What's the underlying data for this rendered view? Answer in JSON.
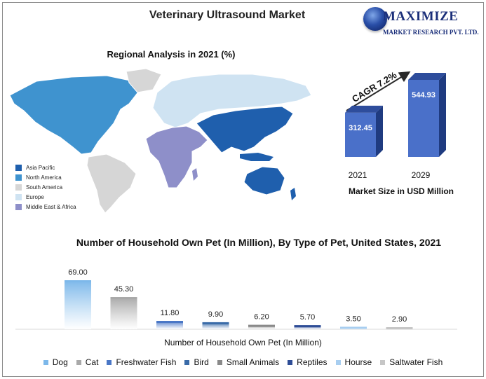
{
  "title": "Veterinary Ultrasound Market",
  "logo": {
    "line1": "MAXIMIZE",
    "line2": "MARKET RESEARCH PVT. LTD."
  },
  "region_map": {
    "title": "Regional Analysis in 2021 (%)",
    "legend": [
      {
        "label": "Asia Pacific",
        "color": "#1f5fad"
      },
      {
        "label": "North America",
        "color": "#3f93cf"
      },
      {
        "label": "South America",
        "color": "#d6d6d6"
      },
      {
        "label": "Europe",
        "color": "#cfe3f2"
      },
      {
        "label": "Middle East & Africa",
        "color": "#8e8fc9"
      }
    ]
  },
  "chart_data": [
    {
      "type": "bar",
      "categories": [
        "2021",
        "2029"
      ],
      "values": [
        312.45,
        544.93
      ],
      "xlabel": "Market Size in USD Million",
      "annotation": "CAGR 7.2%",
      "colors": {
        "front": "#4a70c9",
        "side": "#1f3b80",
        "top": "#2e4d9c"
      }
    },
    {
      "type": "bar",
      "title": "Number of Household Own Pet (In Million), By Type of Pet, United States, 2021",
      "xlabel": "Number of Household Own Pet (In Million)",
      "categories": [
        "Dog",
        "Cat",
        "Freshwater Fish",
        "Bird",
        "Small Animals",
        "Reptiles",
        "Hourse",
        "Saltwater Fish"
      ],
      "values": [
        69.0,
        45.3,
        11.8,
        9.9,
        6.2,
        5.7,
        3.5,
        2.9
      ],
      "value_labels": [
        "69.00",
        "45.30",
        "11.80",
        "9.90",
        "6.20",
        "5.70",
        "3.50",
        "2.90"
      ],
      "colors": [
        "#7db8ea",
        "#a9a9a9",
        "#4a77c6",
        "#3a6ba8",
        "#8a8a8a",
        "#2e4d96",
        "#a8cef0",
        "#c6c6c6"
      ],
      "ylim": [
        0,
        69
      ]
    }
  ]
}
